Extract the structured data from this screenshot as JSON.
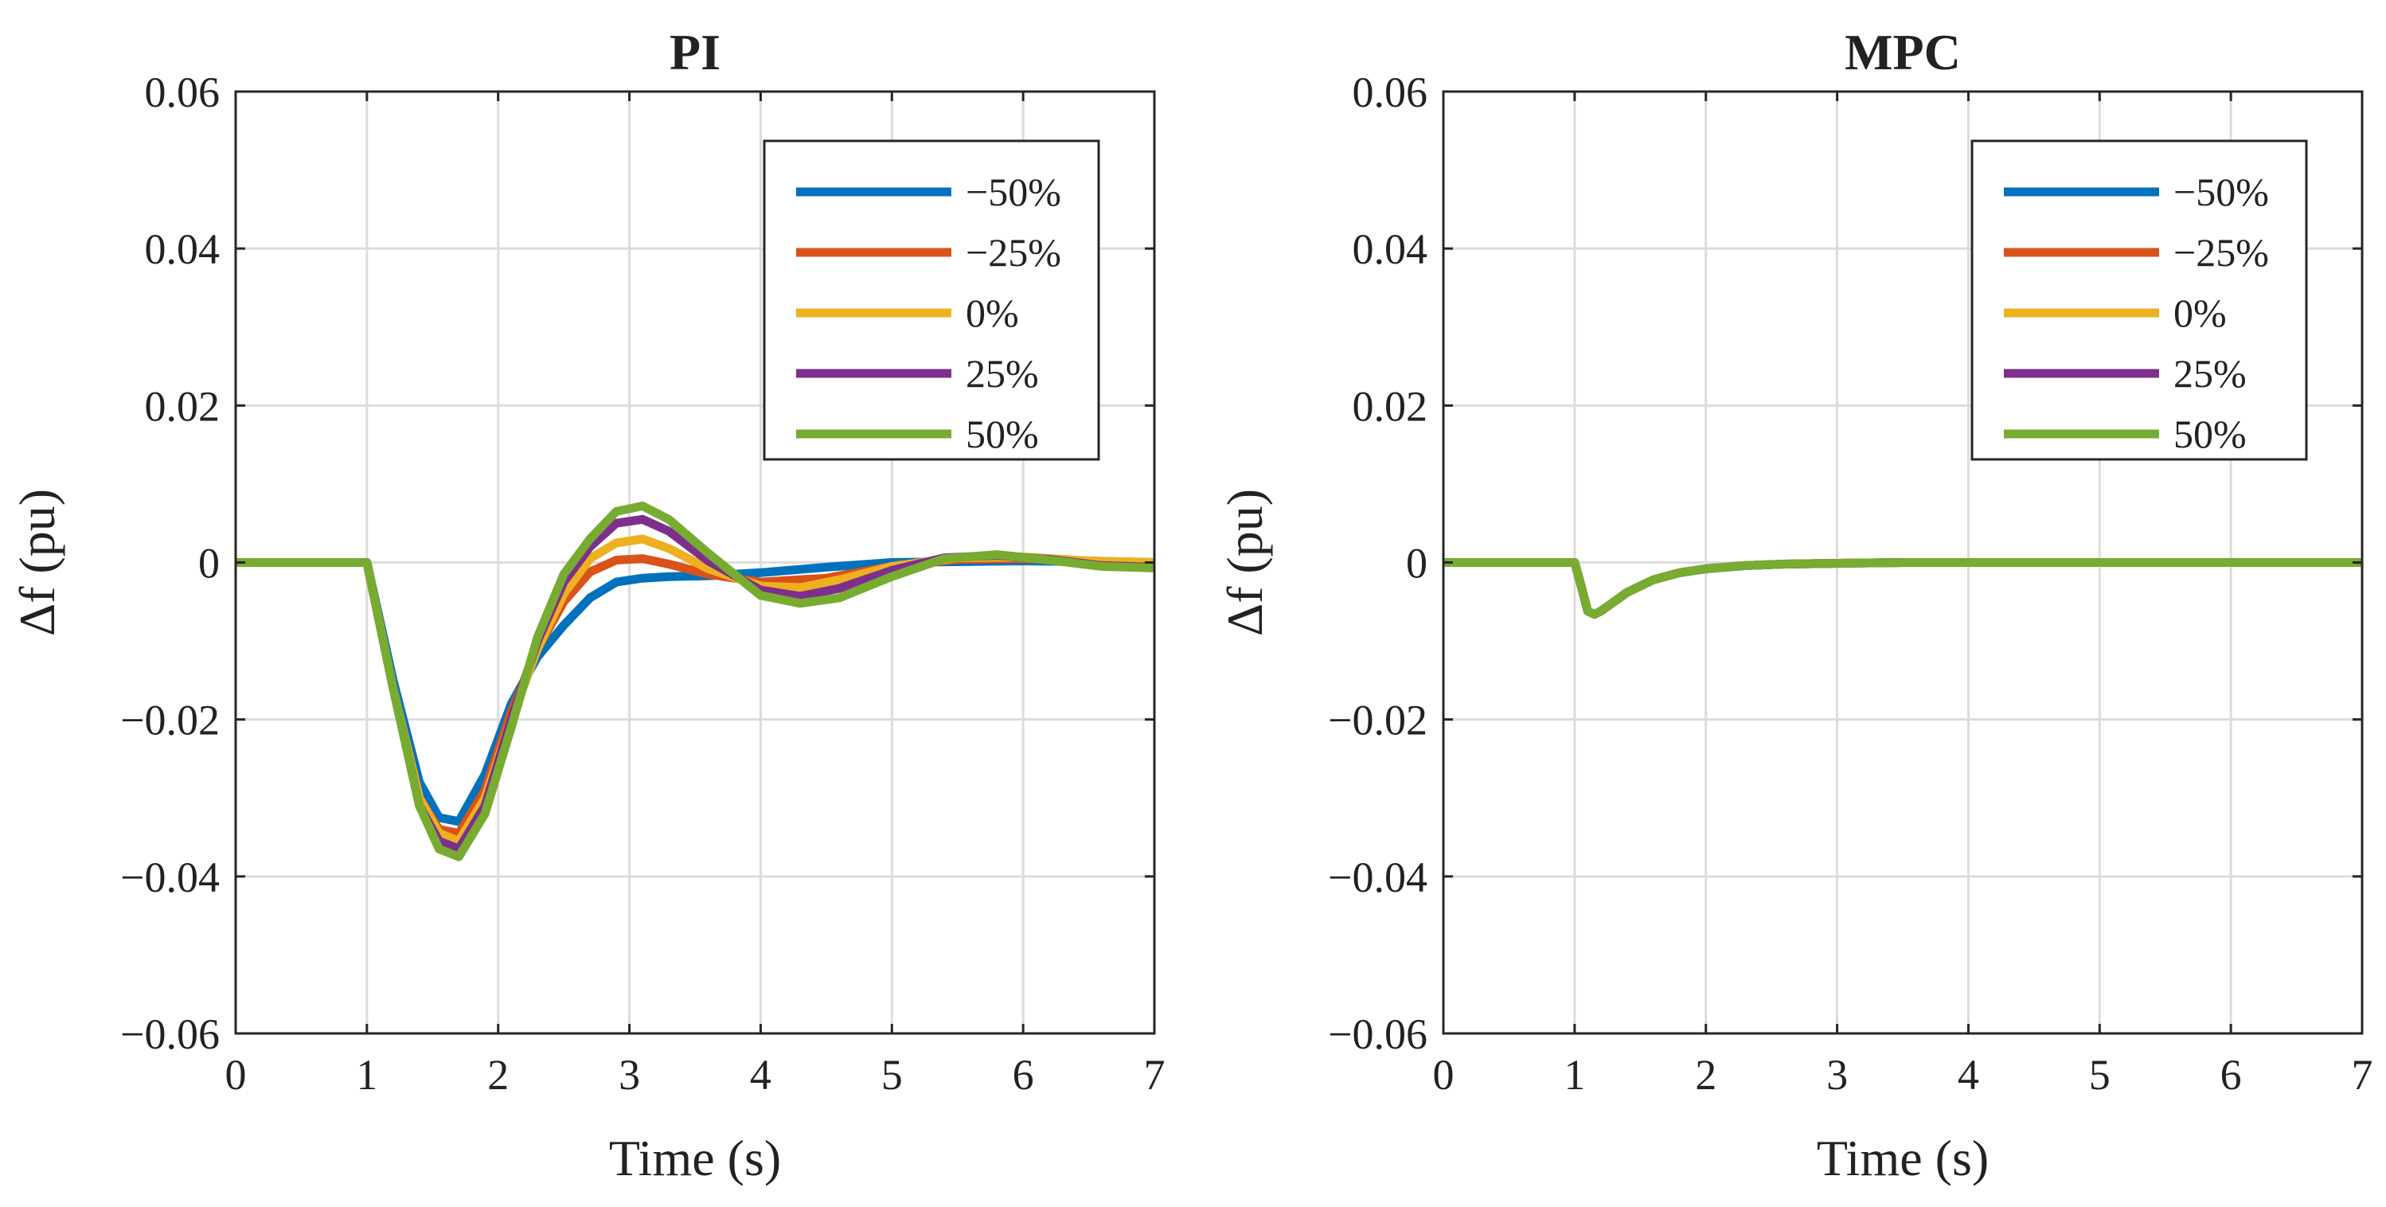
{
  "chart_data": [
    {
      "type": "line",
      "title": "PI",
      "xlabel": "Time (s)",
      "ylabel": "Δf (pu)",
      "xlim": [
        0,
        7
      ],
      "ylim": [
        -0.06,
        0.06
      ],
      "xticks": [
        0,
        1,
        2,
        3,
        4,
        5,
        6,
        7
      ],
      "xtick_labels": [
        "0",
        "1",
        "2",
        "3",
        "4",
        "5",
        "6",
        "7"
      ],
      "yticks": [
        -0.06,
        -0.04,
        -0.02,
        0,
        0.02,
        0.04,
        0.06
      ],
      "ytick_labels": [
        "−0.06",
        "−0.04",
        "−0.02",
        "0",
        "0.02",
        "0.04",
        "0.06"
      ],
      "grid": true,
      "legend_position": "top-right",
      "series": [
        {
          "name": "−50%",
          "color": "#0072BD",
          "x": [
            0,
            1,
            1.2,
            1.4,
            1.55,
            1.7,
            1.9,
            2.1,
            2.3,
            2.5,
            2.7,
            2.9,
            3.1,
            3.3,
            3.6,
            4.0,
            4.5,
            5.0,
            5.5,
            6.0,
            6.5,
            7.0
          ],
          "y": [
            0,
            0,
            -0.015,
            -0.028,
            -0.0325,
            -0.033,
            -0.027,
            -0.018,
            -0.012,
            -0.008,
            -0.0045,
            -0.0025,
            -0.002,
            -0.0018,
            -0.0017,
            -0.0013,
            -0.0006,
            0,
            0.0001,
            0.0002,
            0.0001,
            0
          ]
        },
        {
          "name": "−25%",
          "color": "#D95319",
          "x": [
            0,
            1,
            1.2,
            1.4,
            1.55,
            1.7,
            1.9,
            2.1,
            2.3,
            2.5,
            2.7,
            2.9,
            3.1,
            3.3,
            3.6,
            4.0,
            4.5,
            5.0,
            5.5,
            6.0,
            6.5,
            7.0
          ],
          "y": [
            0,
            0,
            -0.016,
            -0.03,
            -0.034,
            -0.0345,
            -0.029,
            -0.019,
            -0.011,
            -0.005,
            -0.0012,
            0.0003,
            0.0005,
            -0.0002,
            -0.0015,
            -0.0025,
            -0.002,
            -0.0005,
            0.0004,
            0.0005,
            0.0002,
            0
          ]
        },
        {
          "name": "0%",
          "color": "#EDB120",
          "x": [
            0,
            1,
            1.2,
            1.4,
            1.55,
            1.7,
            1.9,
            2.1,
            2.3,
            2.5,
            2.7,
            2.9,
            3.1,
            3.3,
            3.6,
            4.0,
            4.3,
            4.6,
            5.0,
            5.5,
            6.0,
            6.5,
            7.0
          ],
          "y": [
            0,
            0,
            -0.016,
            -0.03,
            -0.0345,
            -0.0355,
            -0.03,
            -0.02,
            -0.011,
            -0.004,
            0.0005,
            0.0025,
            0.003,
            0.0018,
            -0.0008,
            -0.003,
            -0.0032,
            -0.0022,
            -0.0005,
            0.0006,
            0.0007,
            0.0002,
            0
          ]
        },
        {
          "name": "25%",
          "color": "#7E2F8E",
          "x": [
            0,
            1,
            1.2,
            1.4,
            1.55,
            1.7,
            1.9,
            2.1,
            2.3,
            2.5,
            2.7,
            2.9,
            3.1,
            3.3,
            3.6,
            4.0,
            4.3,
            4.6,
            5.0,
            5.4,
            5.8,
            6.2,
            6.6,
            7.0
          ],
          "y": [
            0,
            0,
            -0.016,
            -0.031,
            -0.0355,
            -0.0365,
            -0.031,
            -0.02,
            -0.01,
            -0.0025,
            0.002,
            0.005,
            0.0055,
            0.004,
            0.0002,
            -0.0035,
            -0.0043,
            -0.0033,
            -0.001,
            0.0006,
            0.0009,
            0.0004,
            -0.0004,
            -0.0006
          ]
        },
        {
          "name": "50%",
          "color": "#77AC30",
          "x": [
            0,
            1,
            1.2,
            1.4,
            1.55,
            1.7,
            1.9,
            2.1,
            2.3,
            2.5,
            2.7,
            2.9,
            3.1,
            3.3,
            3.6,
            4.0,
            4.3,
            4.6,
            5.0,
            5.4,
            5.8,
            6.2,
            6.6,
            7.0
          ],
          "y": [
            0,
            0,
            -0.016,
            -0.031,
            -0.0365,
            -0.0375,
            -0.032,
            -0.021,
            -0.0095,
            -0.0015,
            0.003,
            0.0065,
            0.0072,
            0.0055,
            0.0012,
            -0.0042,
            -0.0052,
            -0.0045,
            -0.0018,
            0.0005,
            0.001,
            0.0003,
            -0.0005,
            -0.0007
          ]
        }
      ]
    },
    {
      "type": "line",
      "title": "MPC",
      "xlabel": "Time (s)",
      "ylabel": "Δf (pu)",
      "xlim": [
        0,
        7
      ],
      "ylim": [
        -0.06,
        0.06
      ],
      "xticks": [
        0,
        1,
        2,
        3,
        4,
        5,
        6,
        7
      ],
      "xtick_labels": [
        "0",
        "1",
        "2",
        "3",
        "4",
        "5",
        "6",
        "7"
      ],
      "yticks": [
        -0.06,
        -0.04,
        -0.02,
        0,
        0.02,
        0.04,
        0.06
      ],
      "ytick_labels": [
        "−0.06",
        "−0.04",
        "−0.02",
        "0",
        "0.02",
        "0.04",
        "0.06"
      ],
      "grid": true,
      "legend_position": "top-right",
      "series": [
        {
          "name": "−50%",
          "color": "#0072BD",
          "x": [
            0,
            1,
            1.05,
            1.1,
            1.15,
            1.2,
            1.3,
            1.4,
            1.6,
            1.8,
            2.0,
            2.3,
            2.6,
            3.0,
            3.5,
            4.0,
            5.0,
            6.0,
            7.0
          ],
          "y": [
            0,
            0,
            -0.003,
            -0.0062,
            -0.0066,
            -0.0062,
            -0.005,
            -0.0038,
            -0.0022,
            -0.0013,
            -0.0008,
            -0.0004,
            -0.0002,
            -0.0001,
            0,
            0,
            0,
            0,
            0
          ]
        },
        {
          "name": "−25%",
          "color": "#D95319",
          "x": [
            0,
            1,
            1.05,
            1.1,
            1.15,
            1.2,
            1.3,
            1.4,
            1.6,
            1.8,
            2.0,
            2.3,
            2.6,
            3.0,
            3.5,
            4.0,
            5.0,
            6.0,
            7.0
          ],
          "y": [
            0,
            0,
            -0.003,
            -0.0062,
            -0.0066,
            -0.0062,
            -0.005,
            -0.0038,
            -0.0022,
            -0.0013,
            -0.0008,
            -0.0004,
            -0.0002,
            -0.0001,
            0,
            0,
            0,
            0,
            0
          ]
        },
        {
          "name": "0%",
          "color": "#EDB120",
          "x": [
            0,
            1,
            1.05,
            1.1,
            1.15,
            1.2,
            1.3,
            1.4,
            1.6,
            1.8,
            2.0,
            2.3,
            2.6,
            3.0,
            3.5,
            4.0,
            5.0,
            6.0,
            7.0
          ],
          "y": [
            0,
            0,
            -0.003,
            -0.0062,
            -0.0066,
            -0.0062,
            -0.005,
            -0.0038,
            -0.0022,
            -0.0013,
            -0.0008,
            -0.0004,
            -0.0002,
            -0.0001,
            0,
            0,
            0,
            0,
            0
          ]
        },
        {
          "name": "25%",
          "color": "#7E2F8E",
          "x": [
            0,
            1,
            1.05,
            1.1,
            1.15,
            1.2,
            1.3,
            1.4,
            1.6,
            1.8,
            2.0,
            2.3,
            2.6,
            3.0,
            3.5,
            4.0,
            5.0,
            6.0,
            7.0
          ],
          "y": [
            0,
            0,
            -0.003,
            -0.0062,
            -0.0066,
            -0.0062,
            -0.005,
            -0.0038,
            -0.0022,
            -0.0013,
            -0.0008,
            -0.0004,
            -0.0002,
            -0.0001,
            0,
            0,
            0,
            0,
            0
          ]
        },
        {
          "name": "50%",
          "color": "#77AC30",
          "x": [
            0,
            1,
            1.05,
            1.1,
            1.15,
            1.2,
            1.3,
            1.4,
            1.6,
            1.8,
            2.0,
            2.3,
            2.6,
            3.0,
            3.5,
            4.0,
            5.0,
            6.0,
            7.0
          ],
          "y": [
            0,
            0,
            -0.003,
            -0.0062,
            -0.0066,
            -0.0062,
            -0.005,
            -0.0038,
            -0.0022,
            -0.0013,
            -0.0008,
            -0.0004,
            -0.0002,
            -0.0001,
            0,
            0,
            0,
            0,
            0
          ]
        }
      ]
    }
  ]
}
